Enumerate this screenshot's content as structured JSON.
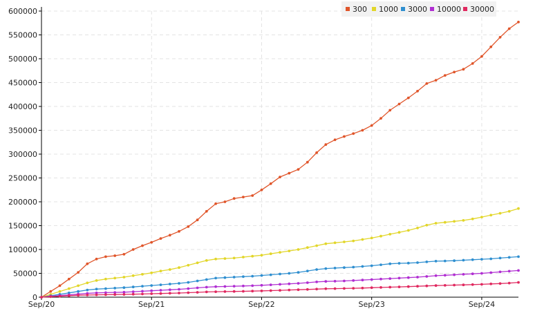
{
  "chart_data": {
    "type": "line",
    "title": "",
    "xlabel": "",
    "ylabel": "",
    "ylim": [
      0,
      600000
    ],
    "y_ticks": [
      "0",
      "50000",
      "100000",
      "150000",
      "200000",
      "250000",
      "300000",
      "350000",
      "400000",
      "450000",
      "500000",
      "550000",
      "600000"
    ],
    "x_tick_labels": [
      "Sep/20",
      "Sep/21",
      "Sep/22",
      "Sep/23",
      "Sep/24"
    ],
    "x_range": [
      "2020-09",
      "2024-12"
    ],
    "grid": true,
    "legend_position": "top-right",
    "series": [
      {
        "name": "300",
        "color": "#e0552a",
        "points": [
          [
            "2020-09",
            0
          ],
          [
            "2020-10",
            12000
          ],
          [
            "2020-11",
            24000
          ],
          [
            "2020-12",
            38000
          ],
          [
            "2021-01",
            52000
          ],
          [
            "2021-02",
            70000
          ],
          [
            "2021-03",
            80000
          ],
          [
            "2021-04",
            85000
          ],
          [
            "2021-05",
            87000
          ],
          [
            "2021-06",
            90000
          ],
          [
            "2021-07",
            100000
          ],
          [
            "2021-08",
            108000
          ],
          [
            "2021-09",
            115000
          ],
          [
            "2021-10",
            123000
          ],
          [
            "2021-11",
            130000
          ],
          [
            "2021-12",
            138000
          ],
          [
            "2022-01",
            148000
          ],
          [
            "2022-02",
            162000
          ],
          [
            "2022-03",
            180000
          ],
          [
            "2022-04",
            196000
          ],
          [
            "2022-05",
            200000
          ],
          [
            "2022-06",
            207000
          ],
          [
            "2022-07",
            210000
          ],
          [
            "2022-08",
            213000
          ],
          [
            "2022-09",
            225000
          ],
          [
            "2022-10",
            238000
          ],
          [
            "2022-11",
            252000
          ],
          [
            "2022-12",
            260000
          ],
          [
            "2023-01",
            268000
          ],
          [
            "2023-02",
            283000
          ],
          [
            "2023-03",
            303000
          ],
          [
            "2023-04",
            320000
          ],
          [
            "2023-05",
            330000
          ],
          [
            "2023-06",
            337000
          ],
          [
            "2023-07",
            343000
          ],
          [
            "2023-08",
            350000
          ],
          [
            "2023-09",
            360000
          ],
          [
            "2023-10",
            375000
          ],
          [
            "2023-11",
            392000
          ],
          [
            "2023-12",
            405000
          ],
          [
            "2024-01",
            418000
          ],
          [
            "2024-02",
            432000
          ],
          [
            "2024-03",
            448000
          ],
          [
            "2024-04",
            455000
          ],
          [
            "2024-05",
            465000
          ],
          [
            "2024-06",
            472000
          ],
          [
            "2024-07",
            478000
          ],
          [
            "2024-08",
            490000
          ],
          [
            "2024-09",
            505000
          ],
          [
            "2024-10",
            525000
          ],
          [
            "2024-11",
            545000
          ],
          [
            "2024-12",
            563000
          ],
          [
            "2025-01",
            577000
          ]
        ]
      },
      {
        "name": "1000",
        "color": "#e2d62a",
        "points": [
          [
            "2020-09",
            0
          ],
          [
            "2020-10",
            6000
          ],
          [
            "2020-11",
            12000
          ],
          [
            "2020-12",
            18000
          ],
          [
            "2021-01",
            24000
          ],
          [
            "2021-02",
            30000
          ],
          [
            "2021-03",
            35000
          ],
          [
            "2021-04",
            38000
          ],
          [
            "2021-05",
            40000
          ],
          [
            "2021-06",
            42000
          ],
          [
            "2021-07",
            45000
          ],
          [
            "2021-08",
            48000
          ],
          [
            "2021-09",
            51000
          ],
          [
            "2021-10",
            55000
          ],
          [
            "2021-11",
            58000
          ],
          [
            "2021-12",
            62000
          ],
          [
            "2022-01",
            67000
          ],
          [
            "2022-02",
            72000
          ],
          [
            "2022-03",
            77000
          ],
          [
            "2022-04",
            80000
          ],
          [
            "2022-05",
            81000
          ],
          [
            "2022-06",
            82000
          ],
          [
            "2022-07",
            84000
          ],
          [
            "2022-08",
            86000
          ],
          [
            "2022-09",
            88000
          ],
          [
            "2022-10",
            91000
          ],
          [
            "2022-11",
            94000
          ],
          [
            "2022-12",
            97000
          ],
          [
            "2023-01",
            100000
          ],
          [
            "2023-02",
            104000
          ],
          [
            "2023-03",
            108000
          ],
          [
            "2023-04",
            112000
          ],
          [
            "2023-05",
            114000
          ],
          [
            "2023-06",
            116000
          ],
          [
            "2023-07",
            118000
          ],
          [
            "2023-08",
            121000
          ],
          [
            "2023-09",
            124000
          ],
          [
            "2023-10",
            128000
          ],
          [
            "2023-11",
            132000
          ],
          [
            "2023-12",
            136000
          ],
          [
            "2024-01",
            140000
          ],
          [
            "2024-02",
            145000
          ],
          [
            "2024-03",
            151000
          ],
          [
            "2024-04",
            155000
          ],
          [
            "2024-05",
            157000
          ],
          [
            "2024-06",
            159000
          ],
          [
            "2024-07",
            161000
          ],
          [
            "2024-08",
            164000
          ],
          [
            "2024-09",
            168000
          ],
          [
            "2024-10",
            172000
          ],
          [
            "2024-11",
            176000
          ],
          [
            "2024-12",
            180000
          ],
          [
            "2025-01",
            186000
          ]
        ]
      },
      {
        "name": "3000",
        "color": "#2f8fd0",
        "points": [
          [
            "2020-09",
            0
          ],
          [
            "2020-10",
            3000
          ],
          [
            "2020-11",
            6000
          ],
          [
            "2020-12",
            9000
          ],
          [
            "2021-01",
            12000
          ],
          [
            "2021-02",
            15000
          ],
          [
            "2021-03",
            17000
          ],
          [
            "2021-04",
            18000
          ],
          [
            "2021-05",
            19000
          ],
          [
            "2021-06",
            20000
          ],
          [
            "2021-07",
            21500
          ],
          [
            "2021-08",
            23000
          ],
          [
            "2021-09",
            24500
          ],
          [
            "2021-10",
            26000
          ],
          [
            "2021-11",
            27500
          ],
          [
            "2021-12",
            29000
          ],
          [
            "2022-01",
            31000
          ],
          [
            "2022-02",
            34000
          ],
          [
            "2022-03",
            37000
          ],
          [
            "2022-04",
            40000
          ],
          [
            "2022-05",
            41000
          ],
          [
            "2022-06",
            42000
          ],
          [
            "2022-07",
            43000
          ],
          [
            "2022-08",
            44000
          ],
          [
            "2022-09",
            45500
          ],
          [
            "2022-10",
            47000
          ],
          [
            "2022-11",
            48500
          ],
          [
            "2022-12",
            50000
          ],
          [
            "2023-01",
            52000
          ],
          [
            "2023-02",
            55000
          ],
          [
            "2023-03",
            58000
          ],
          [
            "2023-04",
            60000
          ],
          [
            "2023-05",
            61000
          ],
          [
            "2023-06",
            62000
          ],
          [
            "2023-07",
            63000
          ],
          [
            "2023-08",
            64500
          ],
          [
            "2023-09",
            66000
          ],
          [
            "2023-10",
            68000
          ],
          [
            "2023-11",
            70000
          ],
          [
            "2023-12",
            71000
          ],
          [
            "2024-01",
            71500
          ],
          [
            "2024-02",
            72500
          ],
          [
            "2024-03",
            74000
          ],
          [
            "2024-04",
            75500
          ],
          [
            "2024-05",
            76000
          ],
          [
            "2024-06",
            76500
          ],
          [
            "2024-07",
            77500
          ],
          [
            "2024-08",
            78500
          ],
          [
            "2024-09",
            79500
          ],
          [
            "2024-10",
            80500
          ],
          [
            "2024-11",
            82000
          ],
          [
            "2024-12",
            83500
          ],
          [
            "2025-01",
            85000
          ]
        ]
      },
      {
        "name": "10000",
        "color": "#b02ed2",
        "points": [
          [
            "2020-09",
            0
          ],
          [
            "2020-10",
            2000
          ],
          [
            "2020-11",
            3500
          ],
          [
            "2020-12",
            5000
          ],
          [
            "2021-01",
            6500
          ],
          [
            "2021-02",
            8000
          ],
          [
            "2021-03",
            9000
          ],
          [
            "2021-04",
            9500
          ],
          [
            "2021-05",
            10000
          ],
          [
            "2021-06",
            10500
          ],
          [
            "2021-07",
            11500
          ],
          [
            "2021-08",
            12500
          ],
          [
            "2021-09",
            13500
          ],
          [
            "2021-10",
            14500
          ],
          [
            "2021-11",
            15500
          ],
          [
            "2021-12",
            16500
          ],
          [
            "2022-01",
            18000
          ],
          [
            "2022-02",
            19500
          ],
          [
            "2022-03",
            21000
          ],
          [
            "2022-04",
            22000
          ],
          [
            "2022-05",
            22500
          ],
          [
            "2022-06",
            23000
          ],
          [
            "2022-07",
            23500
          ],
          [
            "2022-08",
            24000
          ],
          [
            "2022-09",
            25000
          ],
          [
            "2022-10",
            26000
          ],
          [
            "2022-11",
            27000
          ],
          [
            "2022-12",
            28000
          ],
          [
            "2023-01",
            29000
          ],
          [
            "2023-02",
            30500
          ],
          [
            "2023-03",
            32000
          ],
          [
            "2023-04",
            33000
          ],
          [
            "2023-05",
            33500
          ],
          [
            "2023-06",
            34000
          ],
          [
            "2023-07",
            35000
          ],
          [
            "2023-08",
            36000
          ],
          [
            "2023-09",
            37000
          ],
          [
            "2023-10",
            38000
          ],
          [
            "2023-11",
            39000
          ],
          [
            "2023-12",
            40000
          ],
          [
            "2024-01",
            41000
          ],
          [
            "2024-02",
            42000
          ],
          [
            "2024-03",
            43500
          ],
          [
            "2024-04",
            45000
          ],
          [
            "2024-05",
            46000
          ],
          [
            "2024-06",
            47000
          ],
          [
            "2024-07",
            48000
          ],
          [
            "2024-08",
            49000
          ],
          [
            "2024-09",
            50000
          ],
          [
            "2024-10",
            51500
          ],
          [
            "2024-11",
            53000
          ],
          [
            "2024-12",
            54500
          ],
          [
            "2025-01",
            56000
          ]
        ]
      },
      {
        "name": "30000",
        "color": "#e0285f",
        "points": [
          [
            "2020-09",
            0
          ],
          [
            "2020-10",
            1000
          ],
          [
            "2020-11",
            2000
          ],
          [
            "2020-12",
            3000
          ],
          [
            "2021-01",
            4000
          ],
          [
            "2021-02",
            4500
          ],
          [
            "2021-03",
            5000
          ],
          [
            "2021-04",
            5200
          ],
          [
            "2021-05",
            5500
          ],
          [
            "2021-06",
            5800
          ],
          [
            "2021-07",
            6200
          ],
          [
            "2021-08",
            6700
          ],
          [
            "2021-09",
            7200
          ],
          [
            "2021-10",
            7700
          ],
          [
            "2021-11",
            8200
          ],
          [
            "2021-12",
            8700
          ],
          [
            "2022-01",
            9400
          ],
          [
            "2022-02",
            10200
          ],
          [
            "2022-03",
            11000
          ],
          [
            "2022-04",
            11500
          ],
          [
            "2022-05",
            11800
          ],
          [
            "2022-06",
            12000
          ],
          [
            "2022-07",
            12300
          ],
          [
            "2022-08",
            12700
          ],
          [
            "2022-09",
            13200
          ],
          [
            "2022-10",
            13800
          ],
          [
            "2022-11",
            14400
          ],
          [
            "2022-12",
            15000
          ],
          [
            "2023-01",
            15600
          ],
          [
            "2023-02",
            16300
          ],
          [
            "2023-03",
            17000
          ],
          [
            "2023-04",
            17700
          ],
          [
            "2023-05",
            18000
          ],
          [
            "2023-06",
            18300
          ],
          [
            "2023-07",
            18700
          ],
          [
            "2023-08",
            19200
          ],
          [
            "2023-09",
            19800
          ],
          [
            "2023-10",
            20400
          ],
          [
            "2023-11",
            21000
          ],
          [
            "2023-12",
            21600
          ],
          [
            "2024-01",
            22200
          ],
          [
            "2024-02",
            22900
          ],
          [
            "2024-03",
            23600
          ],
          [
            "2024-04",
            24300
          ],
          [
            "2024-05",
            24800
          ],
          [
            "2024-06",
            25300
          ],
          [
            "2024-07",
            25800
          ],
          [
            "2024-08",
            26400
          ],
          [
            "2024-09",
            27000
          ],
          [
            "2024-10",
            27800
          ],
          [
            "2024-11",
            28600
          ],
          [
            "2024-12",
            29500
          ],
          [
            "2025-01",
            31000
          ]
        ]
      }
    ]
  }
}
